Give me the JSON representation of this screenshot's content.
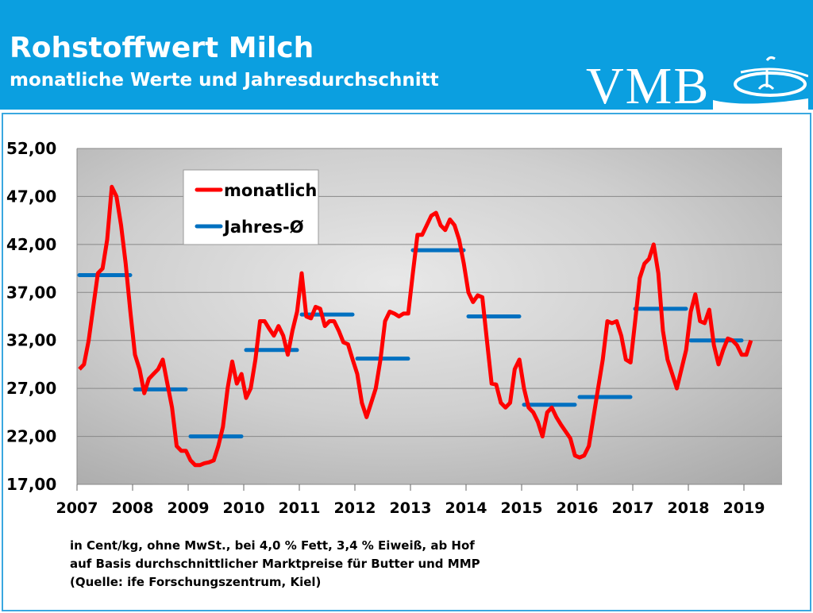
{
  "header": {
    "title": "Rohstoffwert Milch",
    "subtitle": "monatliche Werte und Jahresdurchschnitt",
    "logo_text": "VMB"
  },
  "colors": {
    "header": "#0b9fe0",
    "monthly": "#ff0000",
    "annual": "#0070c0"
  },
  "chart_data": {
    "type": "line",
    "title": "Rohstoffwert Milch",
    "ylim": [
      17,
      52
    ],
    "yticks": [
      "17,00",
      "22,00",
      "27,00",
      "32,00",
      "37,00",
      "42,00",
      "47,00",
      "52,00"
    ],
    "ytick_values": [
      17,
      22,
      27,
      32,
      37,
      42,
      47,
      52
    ],
    "xticks": [
      "2007",
      "2008",
      "2009",
      "2010",
      "2011",
      "2012",
      "2013",
      "2014",
      "2015",
      "2016",
      "2017",
      "2018",
      "2019"
    ],
    "grid": true,
    "legend_position": "top-left",
    "series": [
      {
        "name": "monatlich",
        "start": "2007-01",
        "values": [
          29,
          29.5,
          32,
          35.5,
          39,
          39.5,
          42.5,
          48,
          47,
          44,
          40,
          35,
          30.5,
          29,
          26.5,
          28,
          28.5,
          29,
          30,
          27.5,
          25,
          21,
          20.5,
          20.5,
          19.5,
          19,
          19,
          19.2,
          19.3,
          19.5,
          21,
          23,
          27,
          29.8,
          27.5,
          28.5,
          26,
          27,
          30,
          34,
          34,
          33.2,
          32.5,
          33.5,
          32.5,
          30.5,
          33,
          35,
          39,
          34.5,
          34.3,
          35.5,
          35.3,
          33.5,
          34,
          34,
          33,
          31.8,
          31.6,
          30,
          28.5,
          25.5,
          24,
          25.5,
          27,
          30,
          34,
          35,
          34.8,
          34.5,
          34.8,
          34.8,
          39,
          43,
          43,
          44,
          45,
          45.3,
          44,
          43.5,
          44.6,
          44,
          42.5,
          40,
          37,
          36,
          36.7,
          36.5,
          32,
          27.5,
          27.4,
          25.5,
          25,
          25.5,
          29,
          30,
          27,
          25,
          24.5,
          23.5,
          22,
          24.5,
          25,
          24,
          23.2,
          22.5,
          21.8,
          20,
          19.8,
          20,
          21,
          24,
          27,
          30,
          34,
          33.8,
          34,
          32.5,
          30,
          29.7,
          34,
          38.5,
          40,
          40.5,
          42,
          39,
          33,
          30,
          28.5,
          27,
          29,
          31,
          35,
          36.8,
          34,
          33.8,
          35.2,
          31.5,
          29.5,
          31,
          32.2,
          32,
          31.5,
          30.5,
          30.5,
          32
        ]
      },
      {
        "name": "Jahres-Ø",
        "years": [
          2007,
          2008,
          2009,
          2010,
          2011,
          2012,
          2013,
          2014,
          2015,
          2016,
          2017,
          2018
        ],
        "values": [
          38.8,
          26.9,
          22.0,
          31.0,
          34.7,
          30.1,
          41.4,
          34.5,
          25.3,
          26.1,
          35.3,
          32.0
        ]
      }
    ]
  },
  "footnotes": [
    "in Cent/kg, ohne MwSt., bei 4,0 % Fett, 3,4 % Eiweiß, ab Hof",
    "auf Basis durchschnittlicher Marktpreise für Butter und MMP",
    "(Quelle: ife Forschungszentrum, Kiel)"
  ]
}
